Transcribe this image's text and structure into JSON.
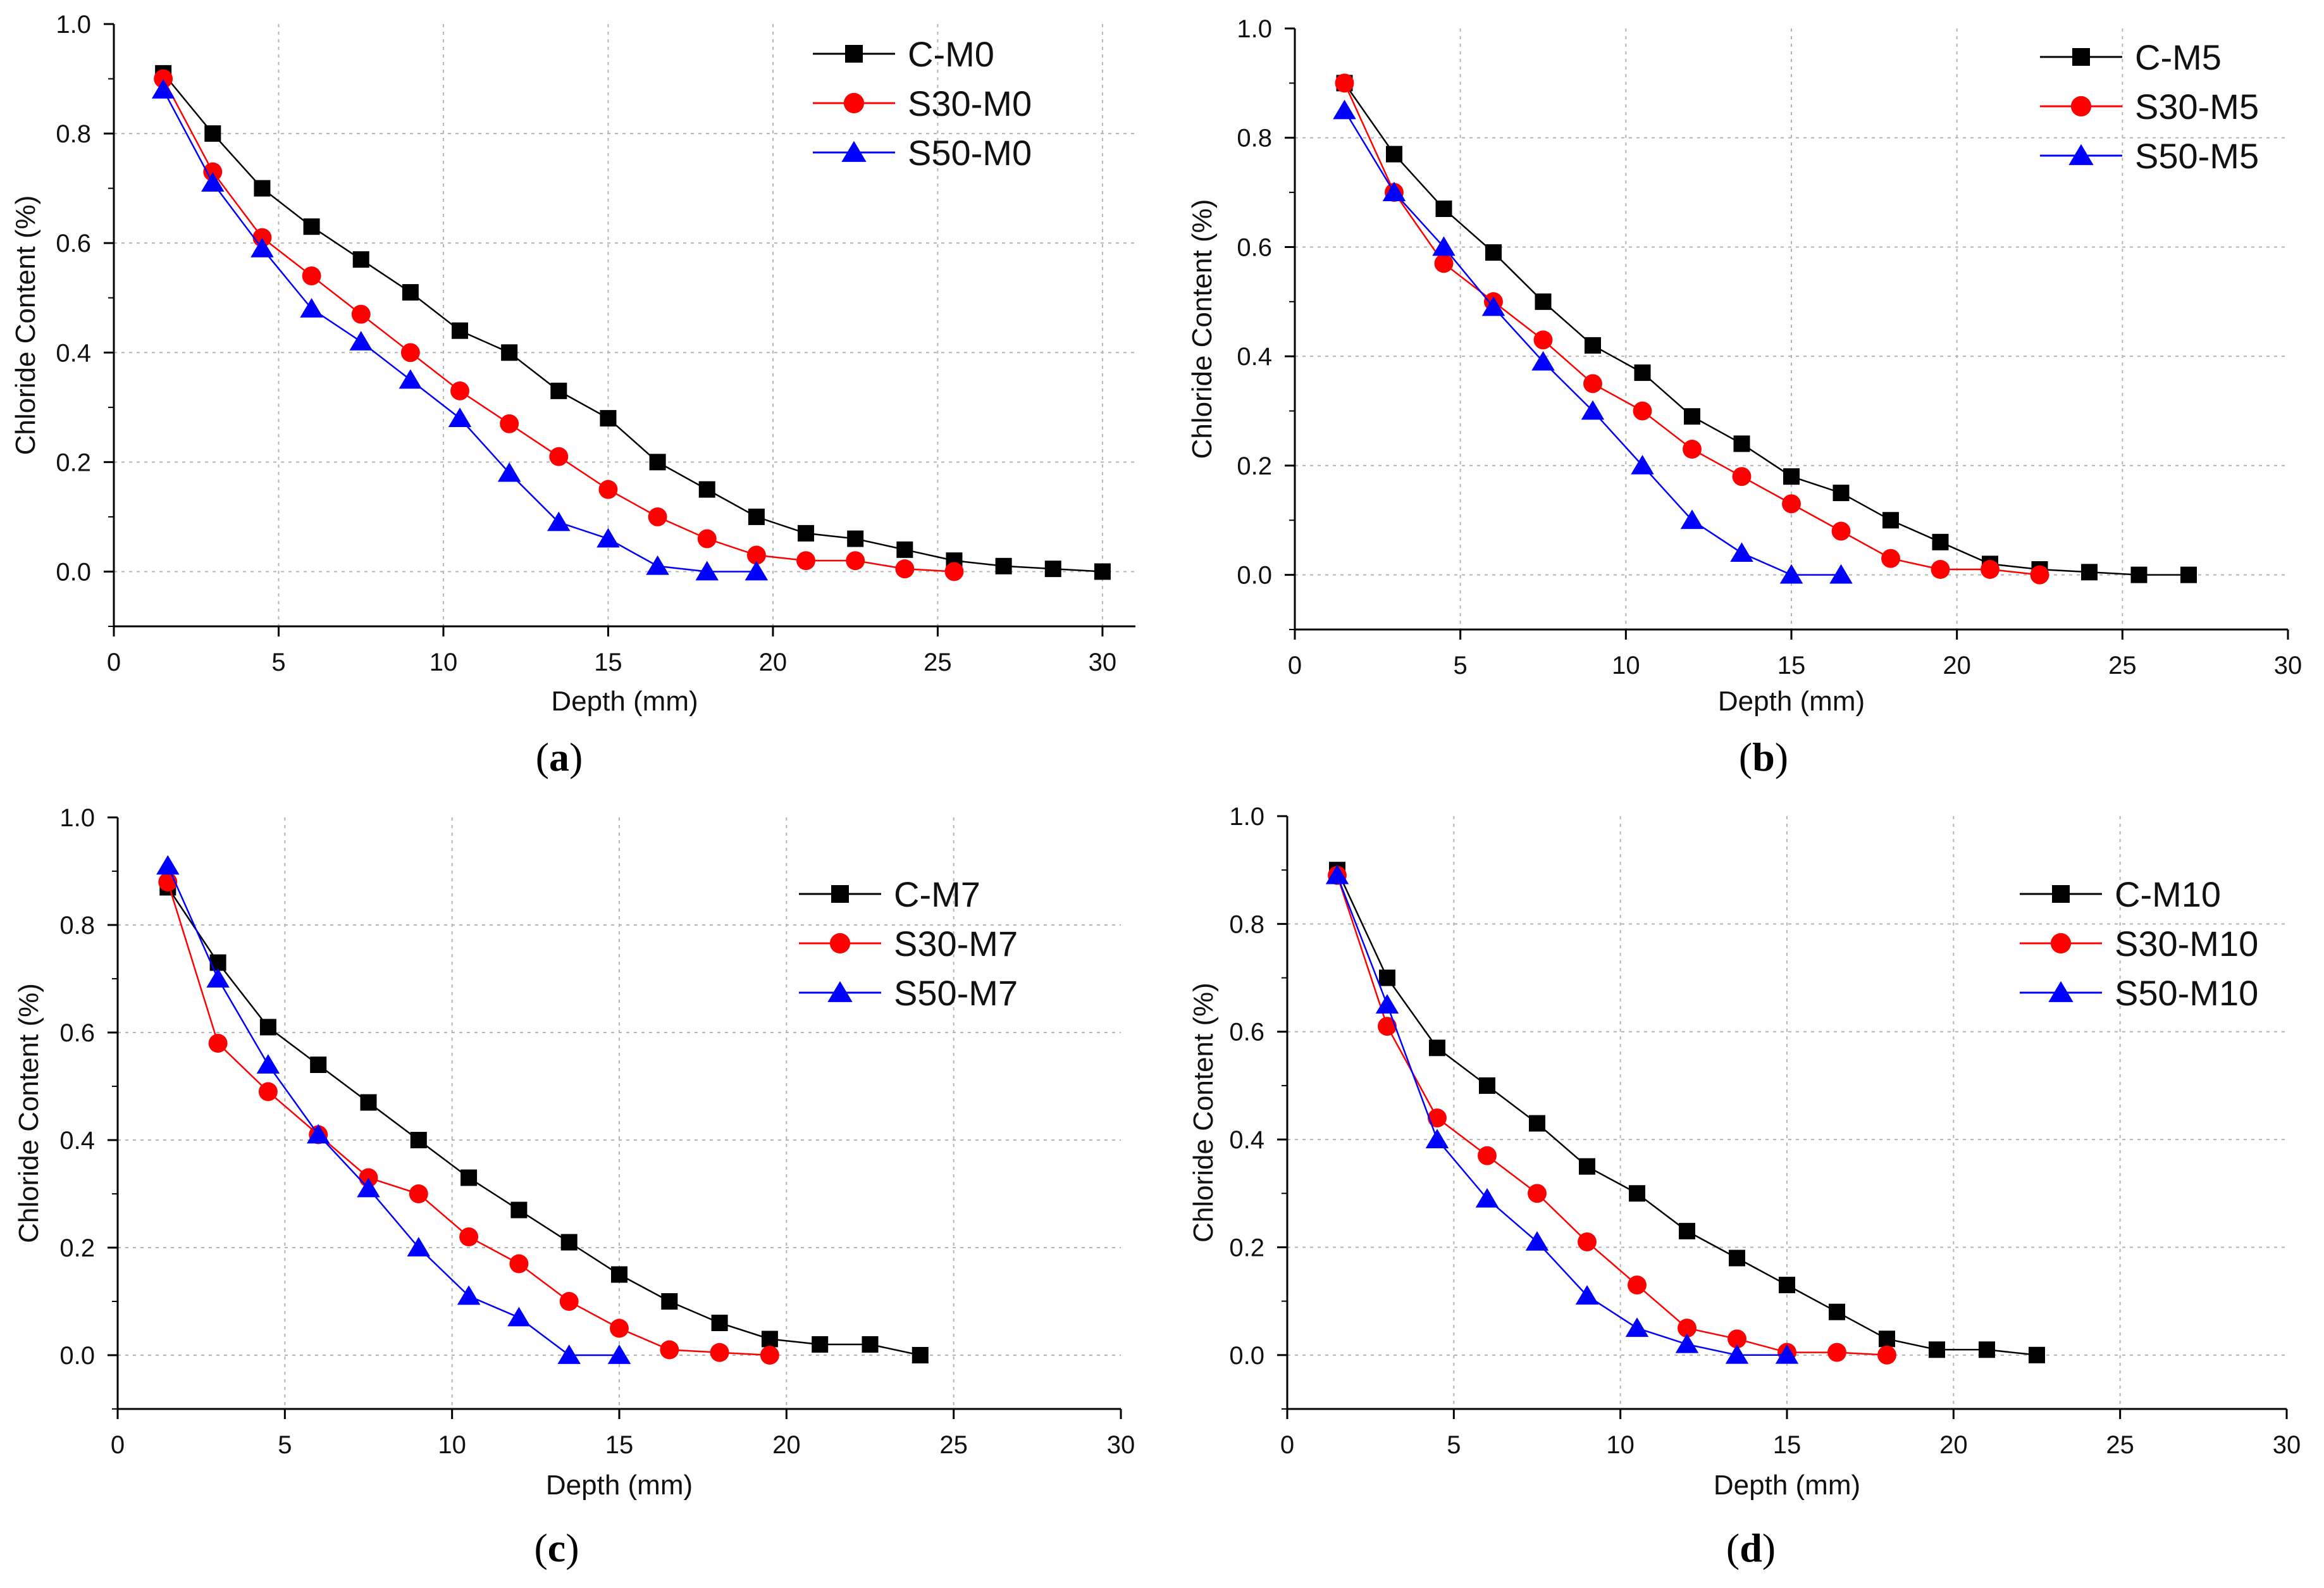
{
  "colors": {
    "series_1": "#000000",
    "series_2": "#ff0000",
    "series_3": "#0000ff",
    "grid": "#b4b4b4"
  },
  "chart_data": [
    {
      "type": "line",
      "caption": "a",
      "xlabel": "Depth (mm)",
      "ylabel": "Chloride Content (%)",
      "xlim": [
        0,
        31
      ],
      "ylim": [
        -0.1,
        1.0
      ],
      "xticks": [
        0,
        5,
        10,
        15,
        20,
        25,
        30
      ],
      "yticks": [
        0.0,
        0.2,
        0.4,
        0.6,
        0.8,
        1.0
      ],
      "ytick_labels": [
        "0.0",
        "0.2",
        "0.4",
        "0.6",
        "0.8",
        "1.0"
      ],
      "grid": true,
      "legend_position": "top-right",
      "series": [
        {
          "name": "C-M0",
          "marker": "square",
          "x": [
            1.5,
            3,
            4.5,
            6,
            7.5,
            9,
            10.5,
            12,
            13.5,
            15,
            16.5,
            18,
            19.5,
            21,
            22.5,
            24,
            25.5,
            27,
            28.5,
            30
          ],
          "y": [
            0.91,
            0.8,
            0.7,
            0.63,
            0.57,
            0.51,
            0.44,
            0.4,
            0.33,
            0.28,
            0.2,
            0.15,
            0.1,
            0.07,
            0.06,
            0.04,
            0.02,
            0.01,
            0.005,
            0.0
          ]
        },
        {
          "name": "S30-M0",
          "marker": "circle",
          "x": [
            1.5,
            3,
            4.5,
            6,
            7.5,
            9,
            10.5,
            12,
            13.5,
            15,
            16.5,
            18,
            19.5,
            21,
            22.5,
            24,
            25.5
          ],
          "y": [
            0.9,
            0.73,
            0.61,
            0.54,
            0.47,
            0.4,
            0.33,
            0.27,
            0.21,
            0.15,
            0.1,
            0.06,
            0.03,
            0.02,
            0.02,
            0.005,
            0.0
          ]
        },
        {
          "name": "S50-M0",
          "marker": "triangle",
          "x": [
            1.5,
            3,
            4.5,
            6,
            7.5,
            9,
            10.5,
            12,
            13.5,
            15,
            16.5,
            18,
            19.5
          ],
          "y": [
            0.88,
            0.71,
            0.59,
            0.48,
            0.42,
            0.35,
            0.28,
            0.18,
            0.09,
            0.06,
            0.01,
            0.0,
            0.0
          ]
        }
      ]
    },
    {
      "type": "line",
      "caption": "b",
      "xlabel": "Depth (mm)",
      "ylabel": "Chloride Content (%)",
      "xlim": [
        0,
        30
      ],
      "ylim": [
        -0.1,
        1.0
      ],
      "xticks": [
        0,
        5,
        10,
        15,
        20,
        25,
        30
      ],
      "yticks": [
        0.0,
        0.2,
        0.4,
        0.6,
        0.8,
        1.0
      ],
      "ytick_labels": [
        "0.0",
        "0.2",
        "0.4",
        "0.6",
        "0.8",
        "1.0"
      ],
      "grid": true,
      "legend_position": "top-right",
      "series": [
        {
          "name": "C-M5",
          "marker": "square",
          "x": [
            1.5,
            3,
            4.5,
            6,
            7.5,
            9,
            10.5,
            12,
            13.5,
            15,
            16.5,
            18,
            19.5,
            21,
            22.5,
            24,
            25.5,
            27
          ],
          "y": [
            0.9,
            0.77,
            0.67,
            0.59,
            0.5,
            0.42,
            0.37,
            0.29,
            0.24,
            0.18,
            0.15,
            0.1,
            0.06,
            0.02,
            0.01,
            0.005,
            0.0,
            0.0
          ]
        },
        {
          "name": "S30-M5",
          "marker": "circle",
          "x": [
            1.5,
            3,
            4.5,
            6,
            7.5,
            9,
            10.5,
            12,
            13.5,
            15,
            16.5,
            18,
            19.5,
            21,
            22.5
          ],
          "y": [
            0.9,
            0.7,
            0.57,
            0.5,
            0.43,
            0.35,
            0.3,
            0.23,
            0.18,
            0.13,
            0.08,
            0.03,
            0.01,
            0.01,
            0.0
          ]
        },
        {
          "name": "S50-M5",
          "marker": "triangle",
          "x": [
            1.5,
            3,
            4.5,
            6,
            7.5,
            9,
            10.5,
            12,
            13.5,
            15,
            16.5
          ],
          "y": [
            0.85,
            0.7,
            0.6,
            0.49,
            0.39,
            0.3,
            0.2,
            0.1,
            0.04,
            0.0,
            0.0
          ]
        }
      ]
    },
    {
      "type": "line",
      "caption": "c",
      "xlabel": "Depth (mm)",
      "ylabel": "Chloride Content (%)",
      "xlim": [
        0,
        30
      ],
      "ylim": [
        -0.1,
        1.0
      ],
      "xticks": [
        0,
        5,
        10,
        15,
        20,
        25,
        30
      ],
      "yticks": [
        0.0,
        0.2,
        0.4,
        0.6,
        0.8,
        1.0
      ],
      "ytick_labels": [
        "0.0",
        "0.2",
        "0.4",
        "0.6",
        "0.8",
        "1.0"
      ],
      "grid": true,
      "legend_position": "top-right",
      "series": [
        {
          "name": "C-M7",
          "marker": "square",
          "x": [
            1.5,
            3,
            4.5,
            6,
            7.5,
            9,
            10.5,
            12,
            13.5,
            15,
            16.5,
            18,
            19.5,
            21,
            22.5,
            24
          ],
          "y": [
            0.87,
            0.73,
            0.61,
            0.54,
            0.47,
            0.4,
            0.33,
            0.27,
            0.21,
            0.15,
            0.1,
            0.06,
            0.03,
            0.02,
            0.02,
            0.0
          ]
        },
        {
          "name": "S30-M7",
          "marker": "circle",
          "x": [
            1.5,
            3,
            4.5,
            6,
            7.5,
            9,
            10.5,
            12,
            13.5,
            15,
            16.5,
            18,
            19.5
          ],
          "y": [
            0.88,
            0.58,
            0.49,
            0.41,
            0.33,
            0.3,
            0.22,
            0.17,
            0.1,
            0.05,
            0.01,
            0.005,
            0.0
          ]
        },
        {
          "name": "S50-M7",
          "marker": "triangle",
          "x": [
            1.5,
            3,
            4.5,
            6,
            7.5,
            9,
            10.5,
            12,
            13.5,
            15
          ],
          "y": [
            0.91,
            0.7,
            0.54,
            0.41,
            0.31,
            0.2,
            0.11,
            0.07,
            0.0,
            0.0
          ]
        }
      ]
    },
    {
      "type": "line",
      "caption": "d",
      "xlabel": "Depth (mm)",
      "ylabel": "Chloride Content (%)",
      "xlim": [
        0,
        30
      ],
      "ylim": [
        -0.1,
        1.0
      ],
      "xticks": [
        0,
        5,
        10,
        15,
        20,
        25,
        30
      ],
      "yticks": [
        0.0,
        0.2,
        0.4,
        0.6,
        0.8,
        1.0
      ],
      "ytick_labels": [
        "0.0",
        "0.2",
        "0.4",
        "0.6",
        "0.8",
        "1.0"
      ],
      "grid": true,
      "legend_position": "top-right",
      "series": [
        {
          "name": "C-M10",
          "marker": "square",
          "x": [
            1.5,
            3,
            4.5,
            6,
            7.5,
            9,
            10.5,
            12,
            13.5,
            15,
            16.5,
            18,
            19.5,
            21,
            22.5
          ],
          "y": [
            0.9,
            0.7,
            0.57,
            0.5,
            0.43,
            0.35,
            0.3,
            0.23,
            0.18,
            0.13,
            0.08,
            0.03,
            0.01,
            0.01,
            0.0
          ]
        },
        {
          "name": "S30-M10",
          "marker": "circle",
          "x": [
            1.5,
            3,
            4.5,
            6,
            7.5,
            9,
            10.5,
            12,
            13.5,
            15,
            16.5,
            18
          ],
          "y": [
            0.89,
            0.61,
            0.44,
            0.37,
            0.3,
            0.21,
            0.13,
            0.05,
            0.03,
            0.005,
            0.005,
            0.0
          ]
        },
        {
          "name": "S50-M10",
          "marker": "triangle",
          "x": [
            1.5,
            3,
            4.5,
            6,
            7.5,
            9,
            10.5,
            12,
            13.5,
            15
          ],
          "y": [
            0.89,
            0.65,
            0.4,
            0.29,
            0.21,
            0.11,
            0.05,
            0.02,
            0.0,
            0.0
          ]
        }
      ]
    }
  ]
}
